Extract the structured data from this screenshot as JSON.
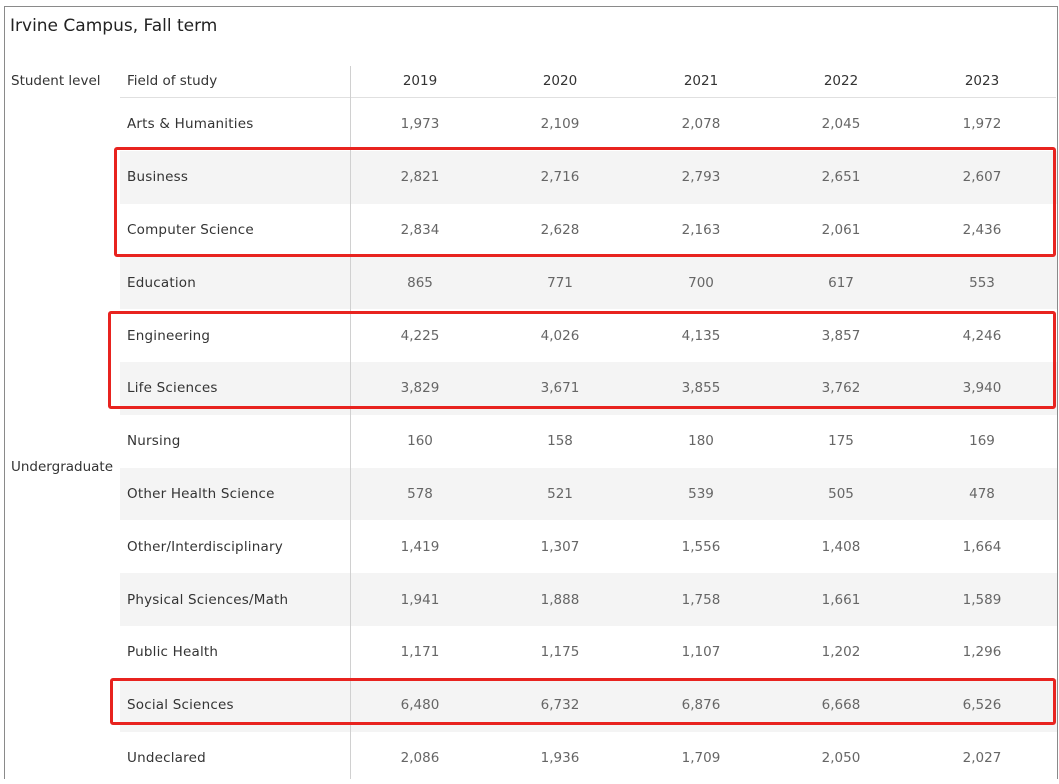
{
  "title": "Irvine Campus, Fall term",
  "headers": {
    "level": "Student level",
    "field": "Field of study",
    "years": [
      "2019",
      "2020",
      "2021",
      "2022",
      "2023"
    ]
  },
  "student_level": "Undergraduate",
  "rows": [
    {
      "field": "Arts & Humanities",
      "values": [
        "1,973",
        "2,109",
        "2,078",
        "2,045",
        "1,972"
      ]
    },
    {
      "field": "Business",
      "values": [
        "2,821",
        "2,716",
        "2,793",
        "2,651",
        "2,607"
      ]
    },
    {
      "field": "Computer Science",
      "values": [
        "2,834",
        "2,628",
        "2,163",
        "2,061",
        "2,436"
      ]
    },
    {
      "field": "Education",
      "values": [
        "865",
        "771",
        "700",
        "617",
        "553"
      ]
    },
    {
      "field": "Engineering",
      "values": [
        "4,225",
        "4,026",
        "4,135",
        "3,857",
        "4,246"
      ]
    },
    {
      "field": "Life Sciences",
      "values": [
        "3,829",
        "3,671",
        "3,855",
        "3,762",
        "3,940"
      ]
    },
    {
      "field": "Nursing",
      "values": [
        "160",
        "158",
        "180",
        "175",
        "169"
      ]
    },
    {
      "field": "Other Health Science",
      "values": [
        "578",
        "521",
        "539",
        "505",
        "478"
      ]
    },
    {
      "field": "Other/Interdisciplinary",
      "values": [
        "1,419",
        "1,307",
        "1,556",
        "1,408",
        "1,664"
      ]
    },
    {
      "field": "Physical Sciences/Math",
      "values": [
        "1,941",
        "1,888",
        "1,758",
        "1,661",
        "1,589"
      ]
    },
    {
      "field": "Public Health",
      "values": [
        "1,171",
        "1,175",
        "1,107",
        "1,202",
        "1,296"
      ]
    },
    {
      "field": "Social Sciences",
      "values": [
        "6,480",
        "6,732",
        "6,876",
        "6,668",
        "6,526"
      ]
    },
    {
      "field": "Undeclared",
      "values": [
        "2,086",
        "1,936",
        "1,709",
        "2,050",
        "2,027"
      ]
    }
  ],
  "highlight_color": "#e8231f",
  "highlighted_groups": [
    [
      "Business",
      "Computer Science"
    ],
    [
      "Engineering",
      "Life Sciences"
    ],
    [
      "Social Sciences"
    ]
  ]
}
